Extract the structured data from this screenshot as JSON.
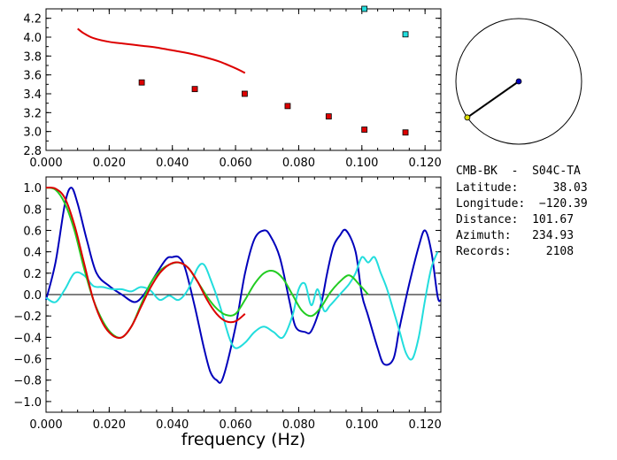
{
  "colors": {
    "red": "#dd0000",
    "blue": "#0000bb",
    "green": "#22cc22",
    "cyan": "#22dddd",
    "frame": "#000000"
  },
  "chart_data": [
    {
      "type": "scatter",
      "title": "",
      "xlabel": "",
      "ylabel": "",
      "xlim": [
        0.0,
        0.125
      ],
      "ylim": [
        2.8,
        4.3
      ],
      "xticks": [
        "0.000",
        "0.020",
        "0.040",
        "0.060",
        "0.080",
        "0.100",
        "0.120"
      ],
      "yticks": [
        "2.8",
        "3.0",
        "3.2",
        "3.4",
        "3.6",
        "3.8",
        "4.0",
        "4.2"
      ],
      "grid": false,
      "lines": [
        {
          "color": "red",
          "x": [
            0.01,
            0.012,
            0.015,
            0.02,
            0.025,
            0.03,
            0.035,
            0.04,
            0.045,
            0.05,
            0.055,
            0.06,
            0.063
          ],
          "y": [
            4.09,
            4.04,
            3.99,
            3.95,
            3.93,
            3.91,
            3.89,
            3.86,
            3.83,
            3.79,
            3.74,
            3.67,
            3.62
          ]
        }
      ],
      "series": [
        {
          "color": "red",
          "x": [
            0.0303,
            0.0471,
            0.0629,
            0.0765,
            0.0895,
            0.1008,
            0.1138
          ],
          "y": [
            3.52,
            3.45,
            3.4,
            3.27,
            3.16,
            3.02,
            2.99
          ]
        },
        {
          "color": "cyan",
          "x": [
            0.1008,
            0.1138
          ],
          "y": [
            4.3,
            4.03
          ]
        }
      ]
    },
    {
      "type": "line",
      "title": "",
      "xlabel": "frequency (Hz)",
      "ylabel": "",
      "xlim": [
        0.0,
        0.125
      ],
      "ylim": [
        -1.1,
        1.1
      ],
      "xticks": [
        "0.000",
        "0.020",
        "0.040",
        "0.060",
        "0.080",
        "0.100",
        "0.120"
      ],
      "yticks": [
        "1.0",
        "0.8",
        "0.6",
        "0.4",
        "0.2",
        "0.0",
        "−0.2",
        "−0.4",
        "−0.6",
        "−0.8",
        "−1.0"
      ],
      "grid": false,
      "zero_line": true,
      "series": [
        {
          "color": "blue",
          "x": [
            0.0,
            0.003,
            0.006,
            0.008,
            0.01,
            0.013,
            0.016,
            0.02,
            0.024,
            0.028,
            0.031,
            0.034,
            0.038,
            0.04,
            0.042,
            0.044,
            0.047,
            0.05,
            0.052,
            0.054,
            0.056,
            0.06,
            0.063,
            0.066,
            0.069,
            0.071,
            0.074,
            0.077,
            0.079,
            0.082,
            0.084,
            0.087,
            0.089,
            0.091,
            0.093,
            0.095,
            0.098,
            0.1,
            0.102,
            0.105,
            0.107,
            0.11,
            0.112,
            0.115,
            0.118,
            0.12,
            0.122,
            0.124,
            0.125
          ],
          "y": [
            -0.05,
            0.3,
            0.85,
            1.0,
            0.85,
            0.5,
            0.2,
            0.08,
            0.0,
            -0.07,
            0.0,
            0.15,
            0.33,
            0.35,
            0.35,
            0.25,
            -0.1,
            -0.5,
            -0.72,
            -0.8,
            -0.78,
            -0.3,
            0.2,
            0.52,
            0.6,
            0.55,
            0.35,
            -0.05,
            -0.3,
            -0.35,
            -0.34,
            -0.1,
            0.2,
            0.45,
            0.55,
            0.6,
            0.4,
            0.0,
            -0.2,
            -0.5,
            -0.65,
            -0.6,
            -0.3,
            0.1,
            0.45,
            0.6,
            0.4,
            -0.02,
            -0.05
          ]
        },
        {
          "color": "cyan",
          "x": [
            0.0,
            0.003,
            0.006,
            0.009,
            0.012,
            0.015,
            0.018,
            0.021,
            0.024,
            0.027,
            0.03,
            0.033,
            0.036,
            0.039,
            0.042,
            0.045,
            0.048,
            0.05,
            0.052,
            0.055,
            0.058,
            0.06,
            0.063,
            0.066,
            0.069,
            0.072,
            0.075,
            0.078,
            0.08,
            0.082,
            0.084,
            0.086,
            0.088,
            0.09,
            0.093,
            0.096,
            0.098,
            0.1,
            0.102,
            0.104,
            0.106,
            0.108,
            0.11,
            0.112,
            0.114,
            0.116,
            0.118,
            0.12,
            0.122,
            0.124
          ],
          "y": [
            -0.03,
            -0.07,
            0.05,
            0.2,
            0.18,
            0.08,
            0.07,
            0.05,
            0.05,
            0.03,
            0.07,
            0.04,
            -0.05,
            -0.01,
            -0.05,
            0.05,
            0.25,
            0.28,
            0.15,
            -0.1,
            -0.4,
            -0.5,
            -0.45,
            -0.35,
            -0.3,
            -0.35,
            -0.4,
            -0.2,
            0.05,
            0.1,
            -0.1,
            0.05,
            -0.15,
            -0.1,
            0.0,
            0.1,
            0.2,
            0.35,
            0.3,
            0.35,
            0.2,
            0.05,
            -0.15,
            -0.35,
            -0.55,
            -0.6,
            -0.4,
            -0.05,
            0.25,
            0.4
          ]
        },
        {
          "color": "green",
          "x": [
            0.0,
            0.003,
            0.006,
            0.009,
            0.012,
            0.015,
            0.018,
            0.021,
            0.024,
            0.027,
            0.03,
            0.033,
            0.036,
            0.039,
            0.042,
            0.045,
            0.048,
            0.051,
            0.054,
            0.057,
            0.06,
            0.063,
            0.066,
            0.069,
            0.072,
            0.075,
            0.078,
            0.081,
            0.084,
            0.087,
            0.09,
            0.093,
            0.096,
            0.099,
            0.102
          ],
          "y": [
            1.0,
            0.98,
            0.85,
            0.6,
            0.25,
            -0.05,
            -0.25,
            -0.37,
            -0.4,
            -0.3,
            -0.1,
            0.1,
            0.22,
            0.28,
            0.3,
            0.25,
            0.12,
            -0.02,
            -0.13,
            -0.19,
            -0.18,
            -0.05,
            0.1,
            0.2,
            0.22,
            0.15,
            0.0,
            -0.15,
            -0.2,
            -0.12,
            0.02,
            0.12,
            0.18,
            0.1,
            0.0
          ]
        },
        {
          "color": "red",
          "x": [
            0.0,
            0.003,
            0.006,
            0.009,
            0.012,
            0.015,
            0.018,
            0.021,
            0.024,
            0.027,
            0.03,
            0.033,
            0.036,
            0.039,
            0.042,
            0.045,
            0.048,
            0.051,
            0.054,
            0.057,
            0.06,
            0.063
          ],
          "y": [
            1.0,
            0.99,
            0.9,
            0.65,
            0.3,
            -0.05,
            -0.27,
            -0.38,
            -0.4,
            -0.3,
            -0.12,
            0.06,
            0.2,
            0.28,
            0.3,
            0.25,
            0.12,
            -0.05,
            -0.18,
            -0.25,
            -0.25,
            -0.18
          ]
        }
      ]
    }
  ],
  "compass": {
    "azimuth": 234.93,
    "line_color": "#000000",
    "center_dot_color": "#0000bb",
    "end_dot_color": "#dddd00"
  },
  "info": {
    "station": "CMB-BK  -  S04C-TA",
    "latitude": "Latitude:     38.03",
    "longitude": "Longitude:  −120.39",
    "distance": "Distance:  101.67",
    "azimuth": "Azimuth:   234.93",
    "records": "Records:     2108"
  }
}
